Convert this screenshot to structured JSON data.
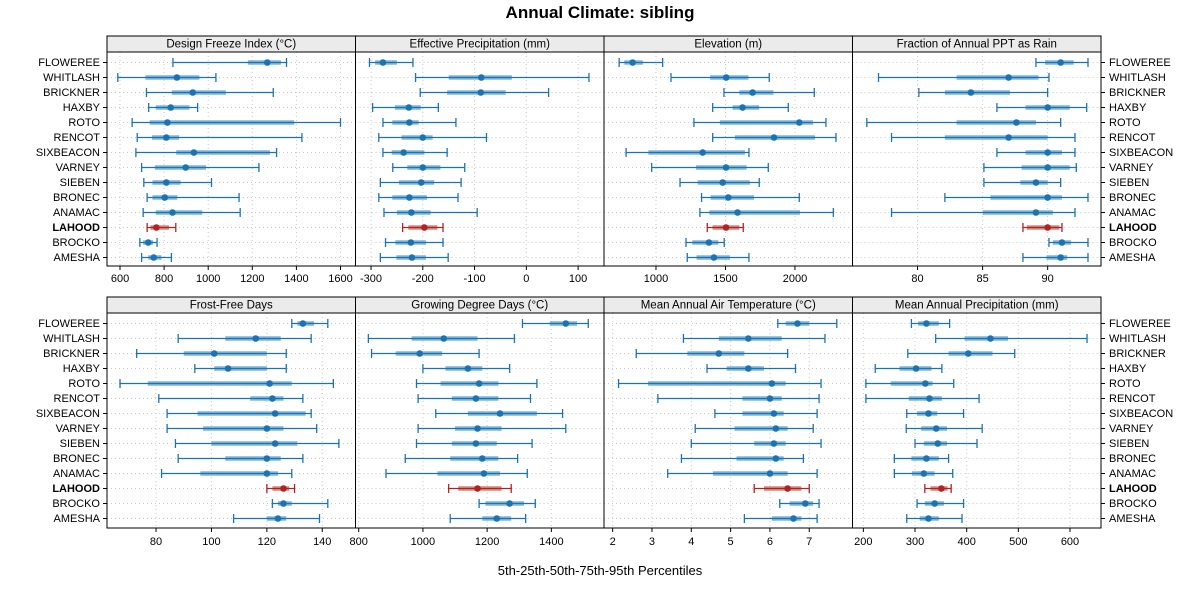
{
  "title": "Annual Climate: sibling",
  "caption": "5th-25th-50th-75th-95th Percentiles",
  "stations": [
    "FLOWEREE",
    "WHITLASH",
    "BRICKNER",
    "HAXBY",
    "ROTO",
    "RENCOT",
    "SIXBEACON",
    "VARNEY",
    "SIEBEN",
    "BRONEC",
    "ANAMAC",
    "LAHOOD",
    "BROCKO",
    "AMESHA"
  ],
  "highlight_station": "LAHOOD",
  "percentiles": [
    "5th",
    "25th",
    "50th",
    "75th",
    "95th"
  ],
  "colors": {
    "normal": "#1c73b3",
    "normal_band": "#7fb6db",
    "highlight": "#b22222",
    "highlight_band": "#d6897e",
    "strip_bg": "#ebebeb",
    "grid": "#c9c9c9",
    "border": "#000000"
  },
  "chart_data": [
    {
      "type": "dotplot",
      "panel": "Design Freeze Index (°C)",
      "grid": {
        "row": 0,
        "col": 0
      },
      "xlim": [
        541,
        1668
      ],
      "ticks": [
        600,
        800,
        1000,
        1200,
        1400,
        1600
      ],
      "values_by_station": [
        [
          840,
          1180,
          1268,
          1330,
          1355
        ],
        [
          590,
          715,
          858,
          960,
          1035
        ],
        [
          720,
          835,
          930,
          1080,
          1295
        ],
        [
          730,
          762,
          830,
          915,
          952
        ],
        [
          655,
          735,
          815,
          1390,
          1600
        ],
        [
          678,
          745,
          810,
          868,
          1425
        ],
        [
          672,
          855,
          935,
          1280,
          1310
        ],
        [
          698,
          758,
          898,
          990,
          1230
        ],
        [
          708,
          747,
          810,
          875,
          1015
        ],
        [
          723,
          747,
          803,
          860,
          1140
        ],
        [
          705,
          762,
          838,
          973,
          1145
        ],
        [
          723,
          738,
          765,
          822,
          853
        ],
        [
          690,
          705,
          728,
          750,
          768
        ],
        [
          698,
          728,
          753,
          788,
          833
        ]
      ]
    },
    {
      "type": "dotplot",
      "panel": "Effective Precipitation (mm)",
      "grid": {
        "row": 0,
        "col": 1
      },
      "xlim": [
        -330,
        150
      ],
      "ticks": [
        -300,
        -200,
        -100,
        0,
        100
      ],
      "values_by_station": [
        [
          -303,
          -292,
          -277,
          -250,
          -219
        ],
        [
          -214,
          -150,
          -87,
          -28,
          121
        ],
        [
          -205,
          -153,
          -88,
          -40,
          43
        ],
        [
          -297,
          -254,
          -227,
          -204,
          -170
        ],
        [
          -277,
          -259,
          -226,
          -208,
          -136
        ],
        [
          -285,
          -241,
          -200,
          -181,
          -77
        ],
        [
          -277,
          -260,
          -237,
          -197,
          -153
        ],
        [
          -258,
          -230,
          -200,
          -166,
          -119
        ],
        [
          -282,
          -246,
          -203,
          -178,
          -126
        ],
        [
          -285,
          -259,
          -226,
          -192,
          -132
        ],
        [
          -275,
          -250,
          -222,
          -185,
          -95
        ],
        [
          -239,
          -228,
          -197,
          -172,
          -161
        ],
        [
          -272,
          -253,
          -223,
          -194,
          -161
        ],
        [
          -282,
          -251,
          -221,
          -194,
          -151
        ]
      ]
    },
    {
      "type": "dotplot",
      "panel": "Elevation (m)",
      "grid": {
        "row": 0,
        "col": 2
      },
      "xlim": [
        626,
        2414
      ],
      "ticks": [
        1000,
        1500,
        2000
      ],
      "values_by_station": [
        [
          735,
          772,
          832,
          905,
          1048
        ],
        [
          1108,
          1390,
          1505,
          1665,
          1815
        ],
        [
          1489,
          1600,
          1695,
          1845,
          2139
        ],
        [
          1408,
          1551,
          1623,
          1743,
          1952
        ],
        [
          1273,
          1460,
          2031,
          2130,
          2223
        ],
        [
          1408,
          1568,
          1849,
          2144,
          2295
        ],
        [
          785,
          945,
          1336,
          1640,
          1669
        ],
        [
          969,
          1288,
          1504,
          1652,
          1808
        ],
        [
          1173,
          1300,
          1480,
          1675,
          1743
        ],
        [
          1328,
          1393,
          1520,
          1705,
          2031
        ],
        [
          1316,
          1384,
          1587,
          2036,
          2276
        ],
        [
          1369,
          1407,
          1504,
          1600,
          1628
        ],
        [
          1216,
          1261,
          1381,
          1448,
          1491
        ],
        [
          1225,
          1292,
          1417,
          1532,
          1669
        ]
      ]
    },
    {
      "type": "dotplot",
      "panel": "Fraction of Annual PPT as Rain",
      "grid": {
        "row": 0,
        "col": 3
      },
      "xlim": [
        75,
        94.1
      ],
      "ticks": [
        80,
        85,
        90
      ],
      "values_by_station": [
        [
          89.1,
          89.8,
          91,
          92,
          93.1
        ],
        [
          77,
          83,
          87,
          89.3,
          90.1
        ],
        [
          80.1,
          82.1,
          84.1,
          87.1,
          90
        ],
        [
          86.1,
          88.3,
          90,
          91.7,
          93
        ],
        [
          76.1,
          83,
          87.6,
          89.1,
          91
        ],
        [
          78,
          82.1,
          87,
          90,
          92.1
        ],
        [
          86.1,
          88.3,
          90,
          91.1,
          92.1
        ],
        [
          85.1,
          88,
          90,
          91.7,
          92.2
        ],
        [
          85.1,
          87.9,
          89.1,
          90,
          91
        ],
        [
          82.1,
          85.6,
          90,
          91.1,
          93.1
        ],
        [
          78,
          85,
          89.1,
          90.4,
          92.1
        ],
        [
          88.1,
          88.4,
          90,
          90.9,
          91.1
        ],
        [
          90.1,
          90.4,
          91.1,
          91.8,
          93.1
        ],
        [
          88.1,
          89.9,
          91,
          91.5,
          93.1
        ]
      ]
    },
    {
      "type": "dotplot",
      "panel": "Frost-Free Days",
      "grid": {
        "row": 1,
        "col": 0
      },
      "xlim": [
        62.3,
        152
      ],
      "ticks": [
        80,
        100,
        120,
        140
      ],
      "values_by_station": [
        [
          129,
          131,
          133,
          137,
          142
        ],
        [
          88,
          105,
          116,
          125,
          136
        ],
        [
          73,
          90,
          101,
          120,
          127
        ],
        [
          94,
          101,
          106,
          120,
          127
        ],
        [
          67,
          77,
          121,
          129,
          144
        ],
        [
          81,
          114,
          122,
          126,
          133
        ],
        [
          84,
          95,
          123,
          134,
          136
        ],
        [
          84,
          97,
          120,
          126,
          138
        ],
        [
          87,
          100,
          123,
          131,
          146
        ],
        [
          88,
          105,
          120,
          125,
          133
        ],
        [
          82,
          96,
          120,
          124,
          129
        ],
        [
          120,
          122,
          126,
          128,
          130
        ],
        [
          122,
          124,
          126,
          129,
          142
        ],
        [
          108,
          120,
          124,
          127,
          139
        ]
      ]
    },
    {
      "type": "dotplot",
      "panel": "Growing Degree Days (°C)",
      "grid": {
        "row": 1,
        "col": 1
      },
      "xlim": [
        790,
        1564
      ],
      "ticks": [
        800,
        1000,
        1200,
        1400
      ],
      "values_by_station": [
        [
          1310,
          1395,
          1445,
          1480,
          1515
        ],
        [
          830,
          965,
          1065,
          1170,
          1285
        ],
        [
          840,
          915,
          990,
          1060,
          1175
        ],
        [
          1000,
          1070,
          1140,
          1185,
          1270
        ],
        [
          980,
          1055,
          1175,
          1235,
          1355
        ],
        [
          985,
          1090,
          1165,
          1235,
          1335
        ],
        [
          1040,
          1140,
          1240,
          1355,
          1435
        ],
        [
          985,
          1100,
          1170,
          1245,
          1445
        ],
        [
          980,
          1090,
          1165,
          1230,
          1340
        ],
        [
          945,
          1085,
          1185,
          1235,
          1295
        ],
        [
          885,
          1045,
          1190,
          1240,
          1325
        ],
        [
          1080,
          1110,
          1170,
          1245,
          1275
        ],
        [
          1175,
          1195,
          1270,
          1315,
          1350
        ],
        [
          1085,
          1185,
          1230,
          1275,
          1320
        ]
      ]
    },
    {
      "type": "dotplot",
      "panel": "Mean Annual Air Temperature (°C)",
      "grid": {
        "row": 1,
        "col": 2
      },
      "xlim": [
        1.78,
        8.1
      ],
      "ticks": [
        2,
        3,
        4,
        5,
        6,
        7
      ],
      "values_by_station": [
        [
          6.2,
          6.4,
          6.7,
          7.0,
          7.7
        ],
        [
          3.8,
          4.7,
          5.45,
          6.3,
          7.4
        ],
        [
          2.6,
          3.9,
          4.7,
          5.35,
          6.45
        ],
        [
          4.4,
          4.9,
          5.45,
          5.85,
          6.65
        ],
        [
          2.15,
          2.9,
          6.05,
          6.4,
          7.3
        ],
        [
          3.15,
          5.3,
          6.0,
          6.3,
          7.25
        ],
        [
          4.6,
          5.3,
          6.1,
          6.35,
          7.2
        ],
        [
          4.1,
          5.1,
          6.15,
          6.45,
          7.1
        ],
        [
          4.0,
          5.6,
          6.1,
          6.4,
          7.3
        ],
        [
          3.75,
          5.15,
          6.15,
          6.35,
          6.85
        ],
        [
          3.4,
          4.55,
          6.0,
          6.45,
          7.2
        ],
        [
          5.6,
          5.85,
          6.45,
          6.8,
          7.0
        ],
        [
          6.25,
          6.5,
          6.9,
          7.1,
          7.25
        ],
        [
          5.35,
          6.05,
          6.6,
          6.8,
          7.2
        ]
      ]
    },
    {
      "type": "dotplot",
      "panel": "Mean Annual Precipitation (mm)",
      "grid": {
        "row": 1,
        "col": 3
      },
      "xlim": [
        179,
        660
      ],
      "ticks": [
        200,
        300,
        400,
        500,
        600
      ],
      "values_by_station": [
        [
          293,
          306,
          322,
          346,
          367
        ],
        [
          340,
          396,
          446,
          480,
          633
        ],
        [
          286,
          365,
          403,
          450,
          493
        ],
        [
          223,
          270,
          302,
          332,
          352
        ],
        [
          205,
          253,
          320,
          334,
          375
        ],
        [
          205,
          288,
          328,
          352,
          424
        ],
        [
          284,
          304,
          326,
          343,
          394
        ],
        [
          283,
          312,
          341,
          362,
          430
        ],
        [
          300,
          317,
          344,
          362,
          420
        ],
        [
          260,
          293,
          322,
          346,
          365
        ],
        [
          260,
          294,
          317,
          338,
          373
        ],
        [
          319,
          330,
          351,
          363,
          370
        ],
        [
          304,
          319,
          338,
          356,
          394
        ],
        [
          284,
          309,
          326,
          346,
          391
        ]
      ]
    }
  ]
}
